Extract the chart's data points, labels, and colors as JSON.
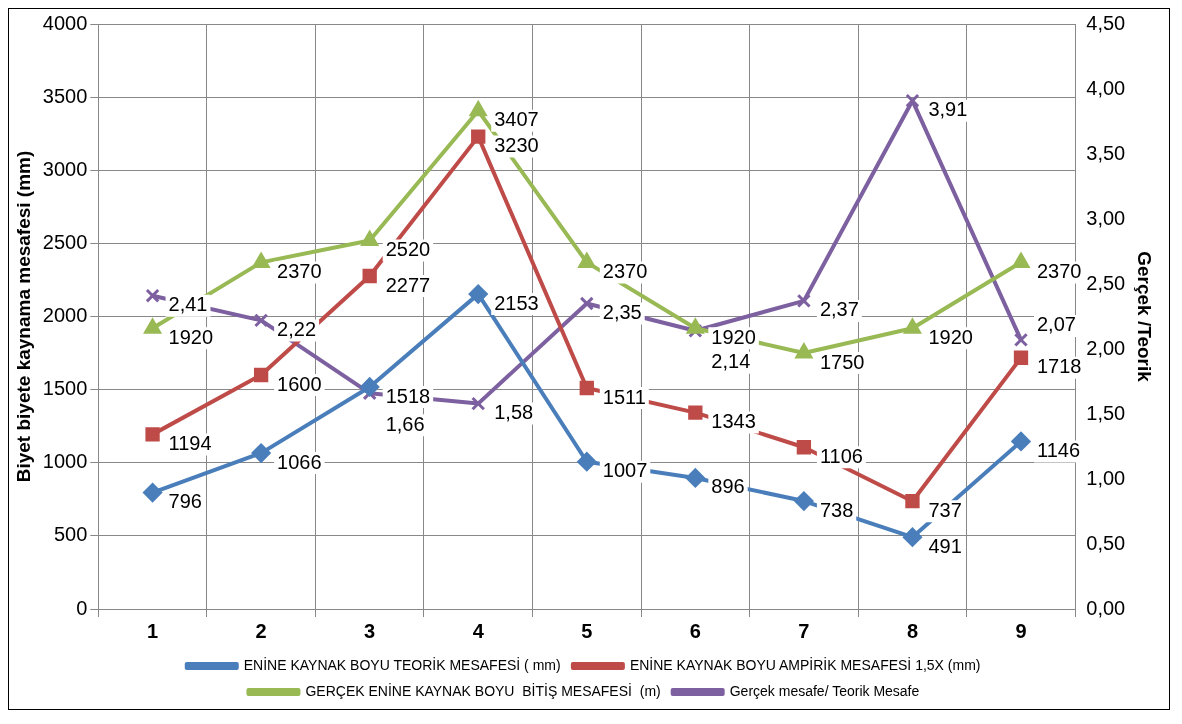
{
  "chart_data": {
    "type": "line",
    "ylabel": "Biyet biyete kaynama mesafesi (mm)",
    "y2label": "Gerçek /Teorik",
    "categories": [
      "1",
      "2",
      "3",
      "4",
      "5",
      "6",
      "7",
      "8",
      "9"
    ],
    "series": [
      {
        "name": "ENİNE KAYNAK BOYU TEORİK MESAFESİ ( mm)",
        "color": "#4a7ebb",
        "marker": "diamond",
        "values": [
          796,
          1066,
          1518,
          2153,
          1007,
          896,
          738,
          491,
          1146
        ],
        "value_labels": [
          "796",
          "1066",
          "1518",
          "2153",
          "1007",
          "896",
          "738",
          "491",
          "1146"
        ]
      },
      {
        "name": "ENİNE KAYNAK BOYU AMPİRİK MESAFESİ 1,5X (mm)",
        "color": "#be4b48",
        "marker": "square",
        "values": [
          1194,
          1600,
          2277,
          3230,
          1511,
          1343,
          1106,
          737,
          1718
        ],
        "value_labels": [
          "1194",
          "1600",
          "2277",
          "3230",
          "1511",
          "1343",
          "1106",
          "737",
          "1718"
        ]
      },
      {
        "name": "GERÇEK ENİNE KAYNAK BOYU  BİTİŞ MESAFESİ  (m)",
        "color": "#98b954",
        "marker": "triangle",
        "values": [
          1920,
          2370,
          2520,
          3407,
          2370,
          1920,
          1750,
          1920,
          2370
        ],
        "value_labels": [
          "1920",
          "2370",
          "2520",
          "3407",
          "2370",
          "1920",
          "1750",
          "1920",
          "2370"
        ]
      },
      {
        "name": "Gerçek mesafe/ Teorik Mesafe",
        "color": "#7d60a0",
        "marker": "cross",
        "axis": "y2",
        "values": [
          2.41,
          2.22,
          1.66,
          1.58,
          2.35,
          2.14,
          2.37,
          3.91,
          2.07
        ],
        "value_labels": [
          "2,41",
          "2,22",
          "1,66",
          "1,58",
          "2,35",
          "2,14",
          "2,37",
          "3,91",
          "2,07"
        ]
      }
    ],
    "ylim": [
      0,
      4000
    ],
    "yticks": [
      0,
      500,
      1000,
      1500,
      2000,
      2500,
      3000,
      3500,
      4000
    ],
    "y2lim": [
      0,
      4.5
    ],
    "y2ticks": [
      {
        "value": 0,
        "label": "0,00"
      },
      {
        "value": 0.5,
        "label": "0,50"
      },
      {
        "value": 1,
        "label": "1,00"
      },
      {
        "value": 1.5,
        "label": "1,50"
      },
      {
        "value": 2,
        "label": "2,00"
      },
      {
        "value": 2.5,
        "label": "2,50"
      },
      {
        "value": 3,
        "label": "3,00"
      },
      {
        "value": 3.5,
        "label": "3,50"
      },
      {
        "value": 4,
        "label": "4,00"
      },
      {
        "value": 4.5,
        "label": "4,50"
      }
    ],
    "grid": true,
    "legend": "bottom",
    "line_style": "solid"
  }
}
